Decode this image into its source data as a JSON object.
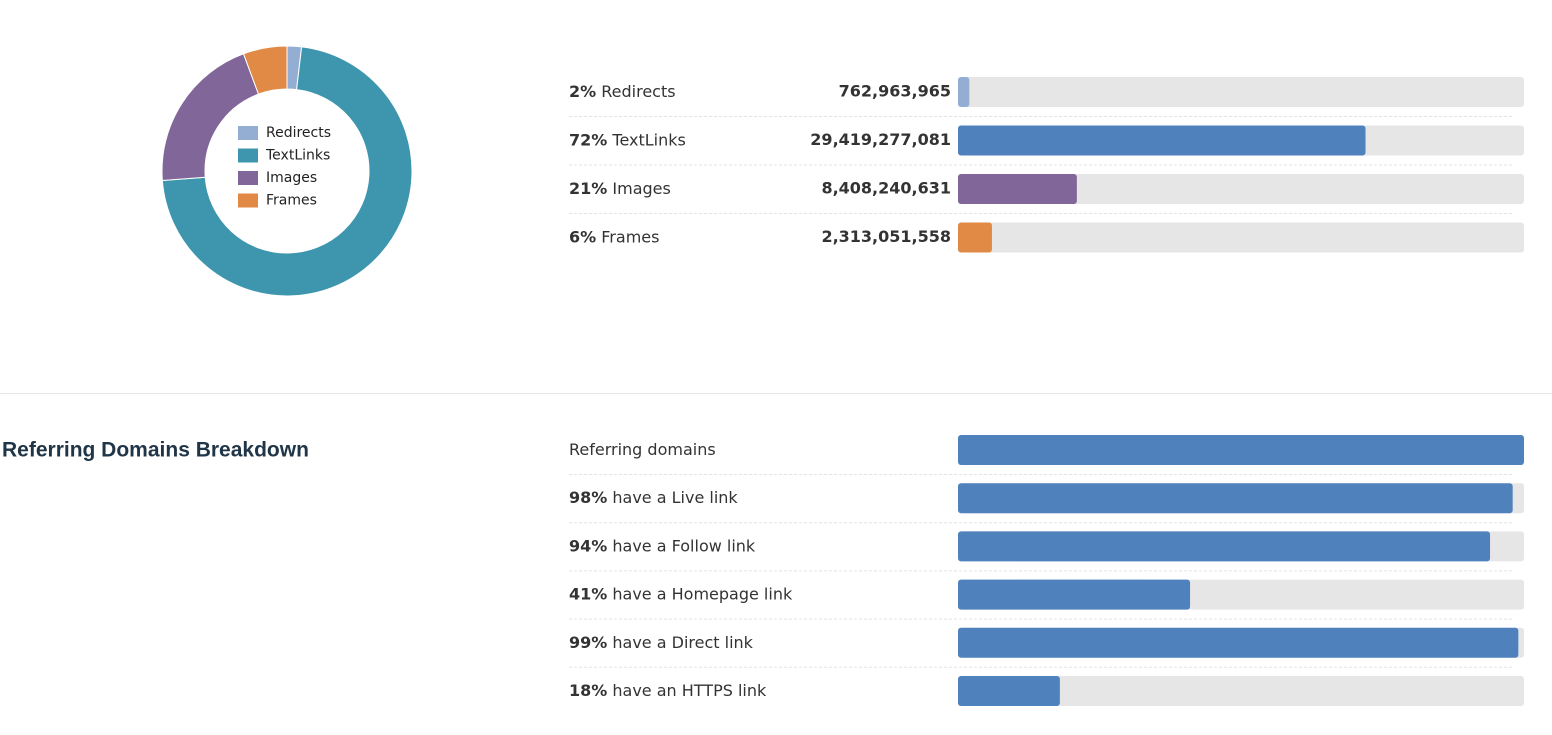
{
  "chart_data": {
    "type": "pie",
    "categories": [
      "Redirects",
      "TextLinks",
      "Images",
      "Frames"
    ],
    "values": [
      762963965,
      29419277081,
      8408240631,
      2313051558
    ],
    "value_labels": [
      "762,963,965",
      "29,419,277,081",
      "8,408,240,631",
      "2,313,051,558"
    ],
    "colors": [
      "#94aed3",
      "#3e96ae",
      "#806699",
      "#e08a45"
    ],
    "percents": [
      {
        "value": 2,
        "label": "2%"
      },
      {
        "value": 72,
        "label": "72%"
      },
      {
        "value": 21,
        "label": "21%"
      },
      {
        "value": 6,
        "label": "6%"
      }
    ],
    "bar_colors": [
      "#94aed3",
      "#4f81bd",
      "#806699",
      "#e08a45"
    ]
  },
  "referring": {
    "title": "Referring Domains Breakdown",
    "color": "#4f81bd",
    "rows": [
      {
        "label": "Referring domains",
        "percent": 100
      },
      {
        "percent": {
          "value": 98,
          "label": "98%"
        },
        "label": "have a Live link"
      },
      {
        "percent": {
          "value": 94,
          "label": "94%"
        },
        "label": "have a Follow link"
      },
      {
        "percent": {
          "value": 41,
          "label": "41%"
        },
        "label": "have a Homepage link"
      },
      {
        "percent": {
          "value": 99,
          "label": "99%"
        },
        "label": "have a Direct link"
      },
      {
        "percent": {
          "value": 18,
          "label": "18%"
        },
        "label": "have an HTTPS link"
      }
    ]
  }
}
